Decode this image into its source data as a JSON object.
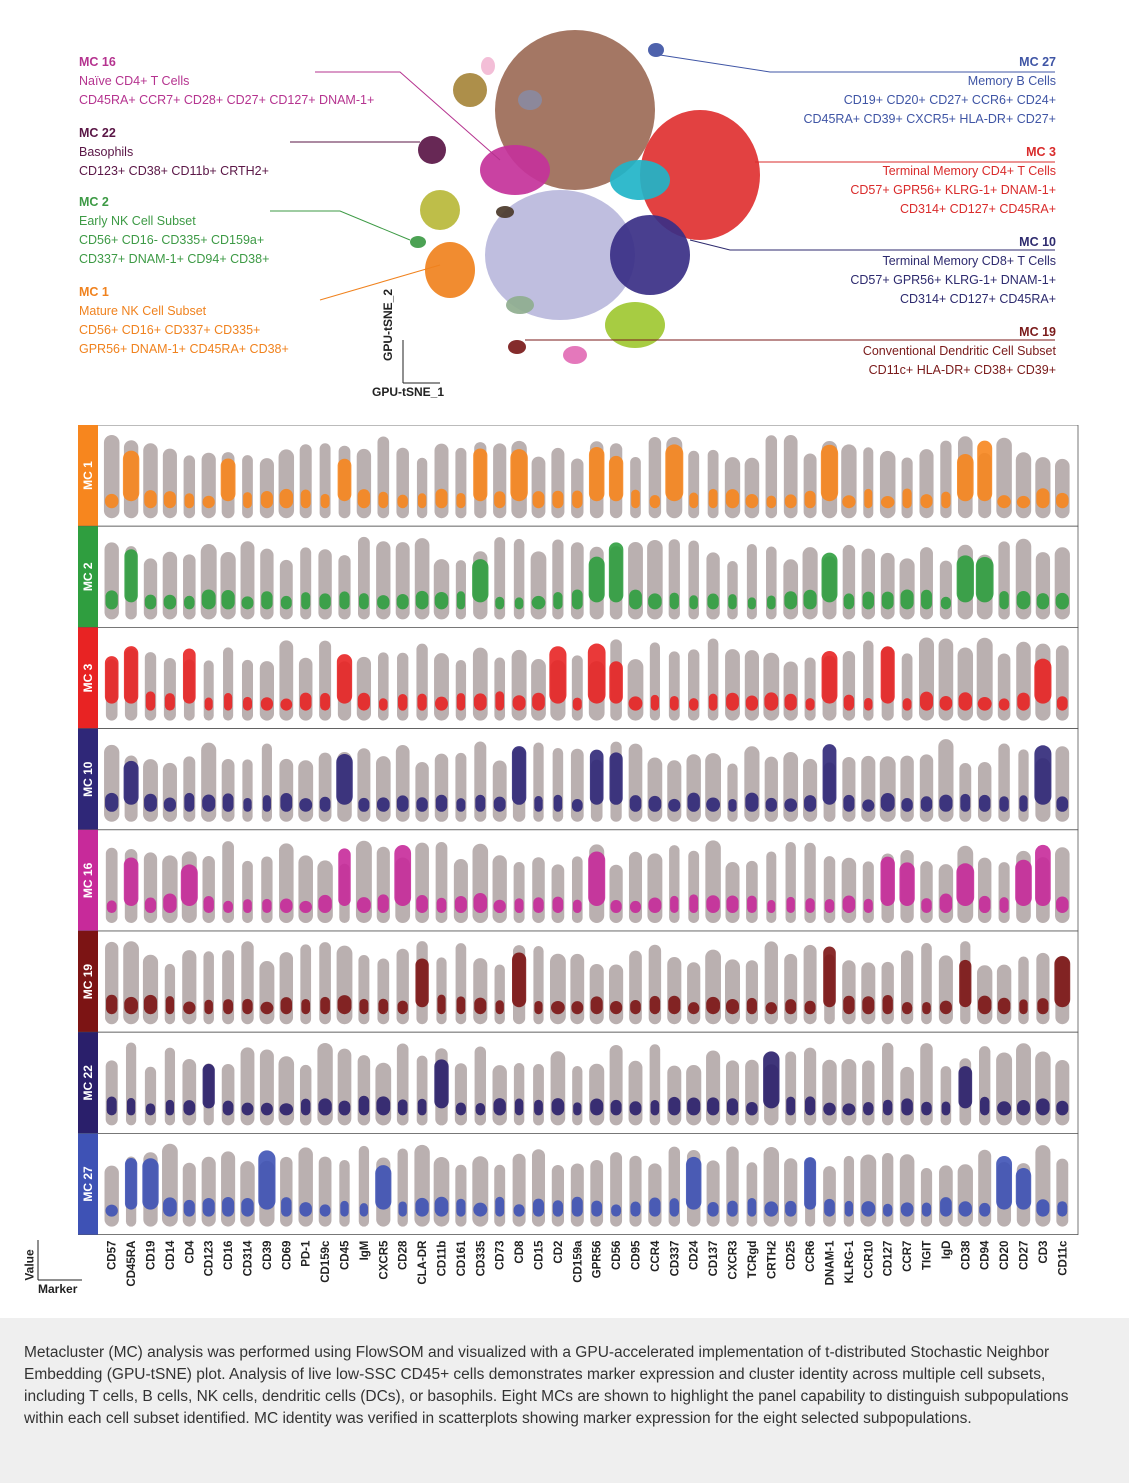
{
  "tsne": {
    "xlabel": "GPU-tSNE_1",
    "ylabel": "GPU-tSNE_2"
  },
  "annotations": [
    {
      "id": "mc16",
      "title": "MC 16",
      "lines": [
        "Naïve CD4+ T Cells",
        "CD45RA+ CCR7+ CD28+ CD27+ CD127+ DNAM-1+"
      ],
      "color": "#b5338f"
    },
    {
      "id": "mc22",
      "title": "MC 22",
      "lines": [
        "Basophils",
        "CD123+ CD38+ CD11b+ CRTH2+"
      ],
      "color": "#5a1646"
    },
    {
      "id": "mc2",
      "title": "MC 2",
      "lines": [
        "Early NK Cell Subset",
        "CD56+ CD16- CD335+ CD159a+",
        "CD337+ DNAM-1+ CD94+ CD38+"
      ],
      "color": "#3d9a45"
    },
    {
      "id": "mc1",
      "title": "MC 1",
      "lines": [
        "Mature NK Cell Subset",
        "CD56+ CD16+ CD337+ CD335+",
        "GPR56+ DNAM-1+ CD45RA+ CD38+"
      ],
      "color": "#f0821e"
    },
    {
      "id": "mc27",
      "title": "MC 27",
      "lines": [
        "Memory B Cells",
        "CD19+ CD20+ CD27+ CCR6+ CD24+",
        "CD45RA+ CD39+ CXCR5+ HLA-DR+ CD27+"
      ],
      "color": "#3f55a5"
    },
    {
      "id": "mc3",
      "title": "MC 3",
      "lines": [
        "Terminal Memory CD4+ T Cells",
        "CD57+ GPR56+ KLRG-1+ DNAM-1+",
        "CD314+ CD127+ CD45RA+"
      ],
      "color": "#d92b2b"
    },
    {
      "id": "mc10",
      "title": "MC 10",
      "lines": [
        "Terminal Memory CD8+ T Cells",
        "CD57+ GPR56+ KLRG-1+ DNAM-1+",
        "CD314+ CD127+ CD45RA+"
      ],
      "color": "#2d2a6e"
    },
    {
      "id": "mc19",
      "title": "MC 19",
      "lines": [
        "Conventional Dendritic Cell Subset",
        "CD11c+ HLA-DR+ CD38+ CD39+"
      ],
      "color": "#7a1a1a"
    }
  ],
  "chart_data": {
    "type": "scatter",
    "ylabel": "Value",
    "xlabel": "Marker",
    "markers": [
      "CD57",
      "CD45RA",
      "CD19",
      "CD14",
      "CD4",
      "CD123",
      "CD16",
      "CD314",
      "CD39",
      "CD69",
      "PD-1",
      "CD159c",
      "CD45",
      "IgM",
      "CXCR5",
      "CD28",
      "CLA-DR",
      "CD11b",
      "CD161",
      "CD335",
      "CD73",
      "CD8",
      "CD15",
      "CD2",
      "CD159a",
      "GPR56",
      "CD56",
      "CD95",
      "CCR4",
      "CD337",
      "CD24",
      "CD137",
      "CXCR3",
      "TCRgd",
      "CRTH2",
      "CD25",
      "CCR6",
      "DNAM-1",
      "KLRG-1",
      "CCR10",
      "CD127",
      "CCR7",
      "TIGIT",
      "IgD",
      "CD38",
      "CD94",
      "CD20",
      "CD27",
      "CD3",
      "CD11c"
    ],
    "clusters": [
      {
        "name": "MC 1",
        "color": "#f7861e"
      },
      {
        "name": "MC 2",
        "color": "#2f9e3f"
      },
      {
        "name": "MC 3",
        "color": "#e82323"
      },
      {
        "name": "MC 10",
        "color": "#2f2778"
      },
      {
        "name": "MC 16",
        "color": "#c72a9a"
      },
      {
        "name": "MC 19",
        "color": "#7c1414"
      },
      {
        "name": "MC 22",
        "color": "#2a1f6b"
      },
      {
        "name": "MC 27",
        "color": "#3e52b5"
      }
    ],
    "expression_high": {
      "MC 1": [
        "CD45RA",
        "CD16",
        "CD45",
        "CD335",
        "CD8",
        "GPR56",
        "CD56",
        "CD337",
        "DNAM-1",
        "CD38",
        "CD94"
      ],
      "MC 2": [
        "CD45RA",
        "CD335",
        "GPR56",
        "CD56",
        "DNAM-1",
        "CD38",
        "CD94"
      ],
      "MC 3": [
        "CD57",
        "CD45RA",
        "CD4",
        "CD45",
        "CD2",
        "GPR56",
        "CD56",
        "DNAM-1",
        "CD127",
        "CD3"
      ],
      "MC 10": [
        "CD45RA",
        "CD45",
        "CD8",
        "GPR56",
        "CD56",
        "DNAM-1",
        "CD3"
      ],
      "MC 16": [
        "CD45RA",
        "CD4",
        "CD28",
        "CD45",
        "GPR56",
        "CD127",
        "CD38",
        "CCR7",
        "CD27",
        "CD3"
      ],
      "MC 19": [
        "CLA-DR",
        "CD8",
        "CD11c",
        "DNAM-1",
        "CD38"
      ],
      "MC 22": [
        "CD123",
        "CD11b",
        "CRTH2",
        "CD38"
      ],
      "MC 27": [
        "CD19",
        "CD45RA",
        "CD39",
        "CXCR5",
        "CD24",
        "CCR6",
        "CD20",
        "CD27"
      ]
    }
  },
  "caption": "Metacluster (MC) analysis was performed using FlowSOM and visualized with a GPU-accelerated implementation of t-distributed Stochastic Neighbor Embedding (GPU-tSNE) plot. Analysis of live low-SSC CD45+ cells demonstrates marker expression and cluster identity across multiple cell subsets, including T cells, B cells, NK cells, dendritic cells (DCs), or basophils. Eight MCs are shown to highlight the panel capability to distinguish subpopulations within each cell subset identified. MC identity was verified in scatterplots showing marker expression for the eight selected subpopulations."
}
